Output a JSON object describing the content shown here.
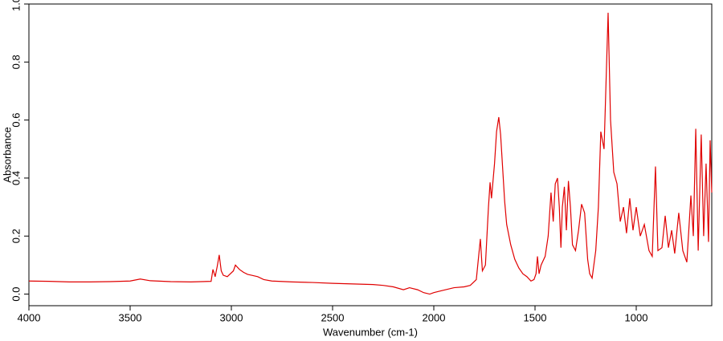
{
  "chart_data": {
    "type": "line",
    "x_label": "Wavenumber (cm-1)",
    "y_label": "Absorbance",
    "x": [
      4000,
      3900,
      3800,
      3700,
      3600,
      3500,
      3450,
      3400,
      3300,
      3200,
      3100,
      3091,
      3080,
      3070,
      3060,
      3050,
      3040,
      3020,
      2990,
      2980,
      2960,
      2940,
      2920,
      2900,
      2870,
      2840,
      2800,
      2700,
      2600,
      2500,
      2400,
      2300,
      2250,
      2200,
      2150,
      2120,
      2080,
      2050,
      2020,
      2000,
      1960,
      1900,
      1850,
      1820,
      1790,
      1770,
      1760,
      1745,
      1730,
      1722,
      1715,
      1700,
      1690,
      1679,
      1670,
      1650,
      1640,
      1620,
      1600,
      1580,
      1560,
      1540,
      1520,
      1505,
      1495,
      1488,
      1480,
      1470,
      1450,
      1435,
      1421,
      1410,
      1400,
      1389,
      1380,
      1372,
      1365,
      1355,
      1345,
      1335,
      1325,
      1315,
      1300,
      1285,
      1270,
      1255,
      1240,
      1230,
      1218,
      1200,
      1187,
      1175,
      1159,
      1139,
      1127,
      1111,
      1095,
      1079,
      1063,
      1048,
      1032,
      1016,
      1000,
      980,
      960,
      937,
      921,
      905,
      893,
      873,
      857,
      841,
      825,
      810,
      790,
      770,
      750,
      730,
      718,
      706,
      694,
      679,
      667,
      655,
      643,
      635,
      627
    ],
    "series": [
      {
        "name": "Absorbance",
        "color": "#e00000",
        "values": [
          0.045,
          0.044,
          0.042,
          0.042,
          0.043,
          0.045,
          0.052,
          0.046,
          0.043,
          0.042,
          0.044,
          0.085,
          0.06,
          0.095,
          0.135,
          0.08,
          0.065,
          0.06,
          0.08,
          0.1,
          0.085,
          0.075,
          0.068,
          0.065,
          0.06,
          0.05,
          0.045,
          0.042,
          0.04,
          0.037,
          0.035,
          0.033,
          0.03,
          0.025,
          0.015,
          0.022,
          0.015,
          0.005,
          0.0,
          0.005,
          0.012,
          0.022,
          0.025,
          0.03,
          0.05,
          0.19,
          0.08,
          0.1,
          0.3,
          0.385,
          0.33,
          0.45,
          0.56,
          0.61,
          0.55,
          0.32,
          0.24,
          0.17,
          0.12,
          0.09,
          0.07,
          0.06,
          0.045,
          0.05,
          0.07,
          0.13,
          0.07,
          0.1,
          0.13,
          0.2,
          0.35,
          0.25,
          0.38,
          0.4,
          0.3,
          0.16,
          0.3,
          0.37,
          0.22,
          0.39,
          0.3,
          0.17,
          0.15,
          0.22,
          0.31,
          0.28,
          0.12,
          0.07,
          0.055,
          0.15,
          0.3,
          0.56,
          0.5,
          0.97,
          0.6,
          0.42,
          0.38,
          0.25,
          0.3,
          0.21,
          0.33,
          0.22,
          0.3,
          0.2,
          0.24,
          0.15,
          0.13,
          0.44,
          0.15,
          0.16,
          0.27,
          0.16,
          0.22,
          0.14,
          0.28,
          0.15,
          0.11,
          0.34,
          0.2,
          0.57,
          0.15,
          0.55,
          0.2,
          0.45,
          0.18,
          0.53,
          0.35
        ]
      }
    ],
    "xlim": [
      4000,
      627
    ],
    "ylim": [
      -0.04,
      1.0
    ],
    "xticks": [
      4000,
      3500,
      3000,
      2500,
      2000,
      1500,
      1000
    ],
    "yticks": [
      {
        "value": 0,
        "label": "0.0"
      },
      0.2,
      0.4,
      0.6,
      0.8,
      {
        "value": 1,
        "label": "1.0"
      }
    ]
  }
}
